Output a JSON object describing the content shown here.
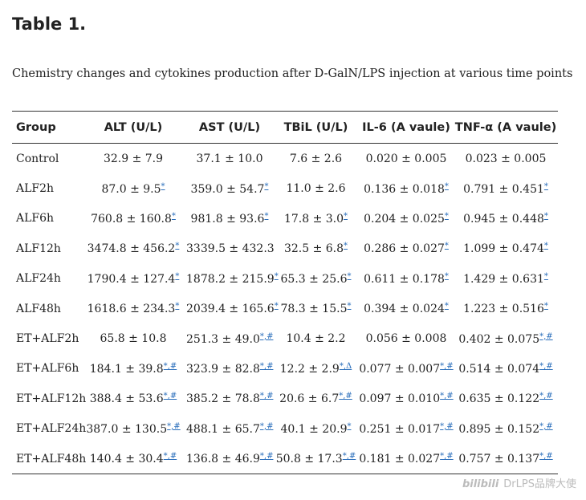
{
  "title": "Table 1.",
  "caption": "Chemistry changes and cytokines production after D-GalN/LPS injection at various time points",
  "table": {
    "header": [
      "Group",
      "ALT (U/L)",
      "AST (U/L)",
      "TBiL (U/L)",
      "IL-6 (A vaule)",
      "TNF-α (A vaule)"
    ],
    "rows": [
      [
        "Control",
        {
          "text": "32.9 ± 7.9"
        },
        {
          "text": "37.1 ± 10.0"
        },
        {
          "text": "7.6 ± 2.6"
        },
        {
          "text": "0.020 ± 0.005"
        },
        {
          "text": "0.023 ± 0.005"
        }
      ],
      [
        "ALF2h",
        {
          "text": "87.0 ± 9.5",
          "note": "*"
        },
        {
          "text": "359.0 ± 54.7",
          "note": "*"
        },
        {
          "text": "11.0 ± 2.6"
        },
        {
          "text": "0.136 ± 0.018",
          "note": "*"
        },
        {
          "text": "0.791 ± 0.451",
          "note": "*"
        }
      ],
      [
        "ALF6h",
        {
          "text": "760.8 ± 160.8",
          "note": "*"
        },
        {
          "text": "981.8 ± 93.6",
          "note": "*"
        },
        {
          "text": "17.8 ± 3.0",
          "note": "*"
        },
        {
          "text": "0.204 ± 0.025",
          "note": "*"
        },
        {
          "text": "0.945 ± 0.448",
          "note": "*"
        }
      ],
      [
        "ALF12h",
        {
          "text": "3474.8 ± 456.2",
          "note": "*"
        },
        {
          "text": "3339.5 ± 432.3"
        },
        {
          "text": "32.5 ± 6.8",
          "note": "*"
        },
        {
          "text": "0.286 ± 0.027",
          "note": "*"
        },
        {
          "text": "1.099 ± 0.474",
          "note": "*"
        }
      ],
      [
        "ALF24h",
        {
          "text": "1790.4 ± 127.4",
          "note": "*"
        },
        {
          "text": "1878.2 ± 215.9",
          "note": "*"
        },
        {
          "text": "65.3 ± 25.6",
          "note": "*"
        },
        {
          "text": "0.611 ± 0.178",
          "note": "*"
        },
        {
          "text": "1.429 ± 0.631",
          "note": "*"
        }
      ],
      [
        "ALF48h",
        {
          "text": "1618.6 ± 234.3",
          "note": "*"
        },
        {
          "text": "2039.4 ± 165.6",
          "note": "*"
        },
        {
          "text": "78.3 ± 15.5",
          "note": "*"
        },
        {
          "text": "0.394 ± 0.024",
          "note": "*"
        },
        {
          "text": "1.223 ± 0.516",
          "note": "*"
        }
      ],
      [
        "ET+ALF2h",
        {
          "text": "65.8 ± 10.8"
        },
        {
          "text": "251.3 ± 49.0",
          "note": "*,#"
        },
        {
          "text": "10.4 ± 2.2"
        },
        {
          "text": "0.056 ± 0.008"
        },
        {
          "text": "0.402 ± 0.075",
          "note": "*,#"
        }
      ],
      [
        "ET+ALF6h",
        {
          "text": "184.1 ± 39.8",
          "note": "*,#"
        },
        {
          "text": "323.9 ± 82.8",
          "note": "*,#"
        },
        {
          "text": "12.2 ± 2.9",
          "note": "*,Δ"
        },
        {
          "text": "0.077 ± 0.007",
          "note": "*,#"
        },
        {
          "text": "0.514 ± 0.074",
          "note": "*,#"
        }
      ],
      [
        "ET+ALF12h",
        {
          "text": "388.4 ± 53.6",
          "note": "*,#"
        },
        {
          "text": "385.2 ± 78.8",
          "note": "*,#"
        },
        {
          "text": "20.6 ± 6.7",
          "note": "*,#"
        },
        {
          "text": "0.097 ± 0.010",
          "note": "*,#"
        },
        {
          "text": "0.635 ± 0.122",
          "note": "*,#"
        }
      ],
      [
        "ET+ALF24h",
        {
          "text": "387.0 ± 130.5",
          "note": "*,#"
        },
        {
          "text": "488.1 ± 65.7",
          "note": "*,#"
        },
        {
          "text": "40.1 ± 20.9",
          "note": "*"
        },
        {
          "text": "0.251 ± 0.017",
          "note": "*,#"
        },
        {
          "text": "0.895 ± 0.152",
          "note": "*,#"
        }
      ],
      [
        "ET+ALF48h",
        {
          "text": "140.4 ± 30.4",
          "note": "*,#"
        },
        {
          "text": "136.8 ± 46.9",
          "note": "*,#"
        },
        {
          "text": "50.8 ± 17.3",
          "note": "*,#"
        },
        {
          "text": "0.181 ± 0.027",
          "note": "*,#"
        },
        {
          "text": "0.757 ± 0.137",
          "note": "*,#"
        }
      ]
    ]
  },
  "watermark": {
    "logo": "bilibili",
    "text": "DrLPS品牌大使"
  }
}
